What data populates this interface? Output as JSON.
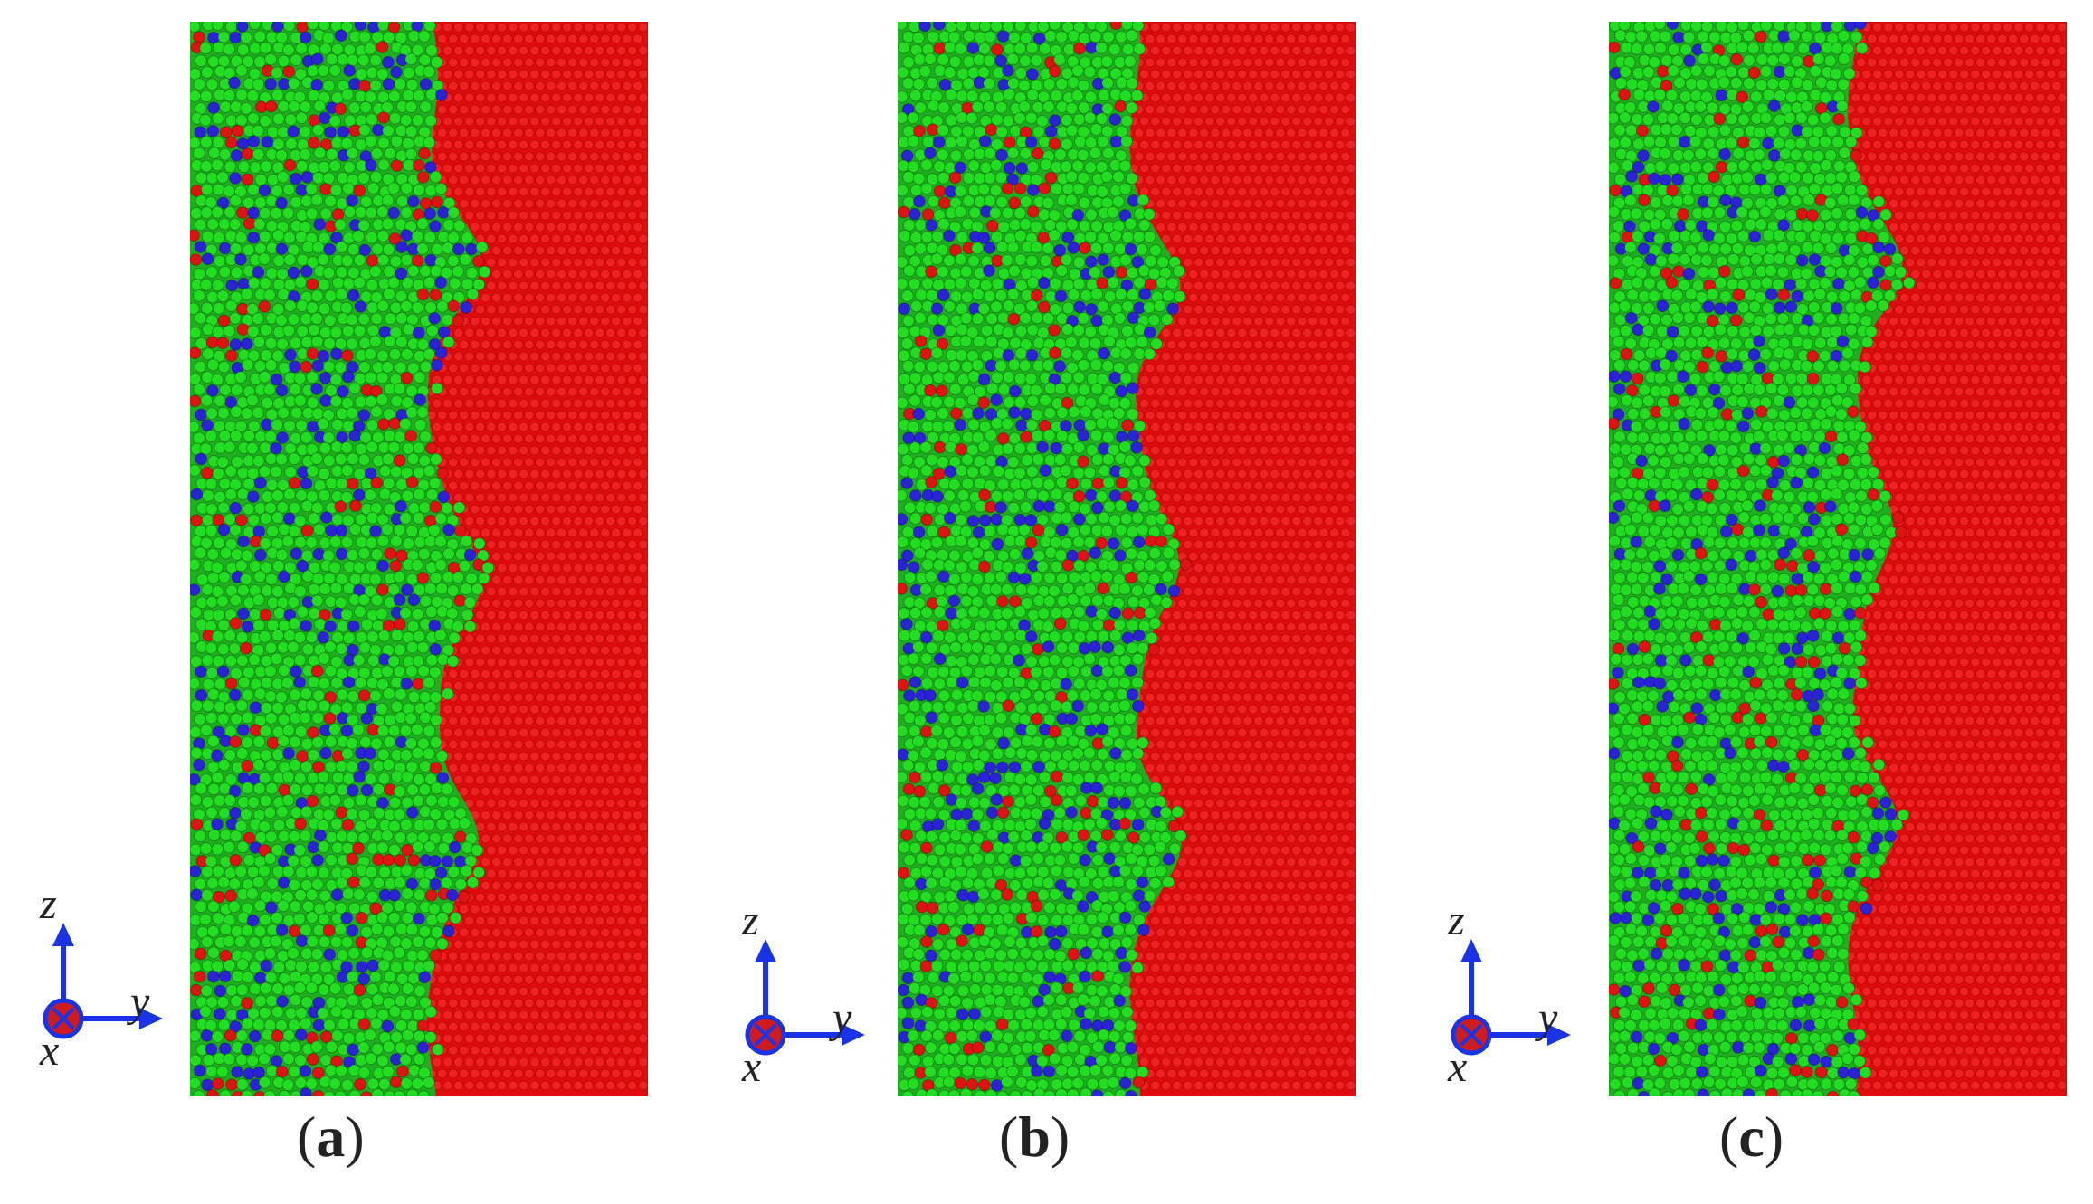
{
  "panels": [
    {
      "id": "a",
      "label_open": "(",
      "label_letter": "a",
      "label_close": ")",
      "variant": 0
    },
    {
      "id": "b",
      "label_open": "(",
      "label_letter": "b",
      "label_close": ")",
      "variant": 1
    },
    {
      "id": "c",
      "label_open": "(",
      "label_letter": "c",
      "label_close": ")",
      "variant": 2
    }
  ],
  "axes": {
    "z": "z",
    "y": "y",
    "x": "x"
  },
  "colors": {
    "background": "#ffffff",
    "crystal_red": "#e00b0b",
    "atom_green": "#22dd22",
    "atom_blue": "#2a22d6",
    "atom_red": "#e01212",
    "axis_arrow": "#1a33e6",
    "axis_origin": "#d11b1b",
    "label_text": "#222222"
  },
  "icons": {
    "axis_origin": "x-into-page-icon",
    "axis_arrow": "arrow-icon"
  }
}
